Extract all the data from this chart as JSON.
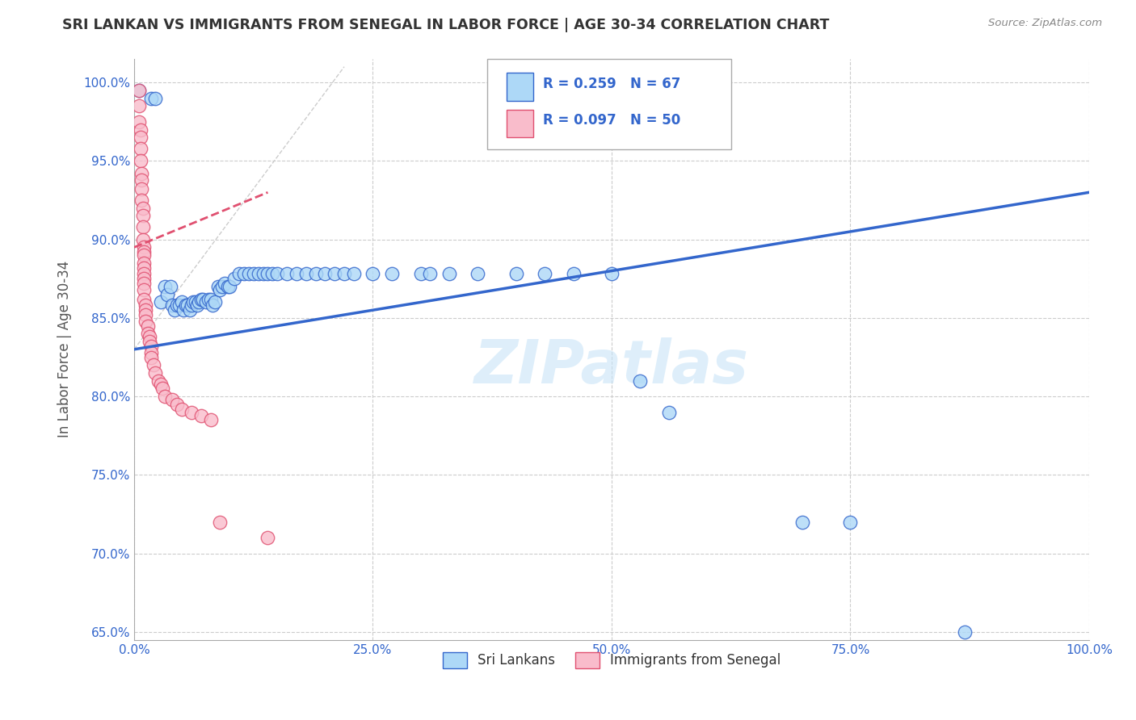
{
  "title": "SRI LANKAN VS IMMIGRANTS FROM SENEGAL IN LABOR FORCE | AGE 30-34 CORRELATION CHART",
  "source_text": "Source: ZipAtlas.com",
  "ylabel": "In Labor Force | Age 30-34",
  "watermark": "ZIPatlas",
  "xlim": [
    0.0,
    1.0
  ],
  "ylim": [
    0.645,
    1.015
  ],
  "xticks": [
    0.0,
    0.25,
    0.5,
    0.75,
    1.0
  ],
  "xticklabels": [
    "0.0%",
    "25.0%",
    "50.0%",
    "75.0%",
    "100.0%"
  ],
  "yticks": [
    0.65,
    0.7,
    0.75,
    0.8,
    0.85,
    0.9,
    0.95,
    1.0
  ],
  "yticklabels": [
    "65.0%",
    "70.0%",
    "75.0%",
    "80.0%",
    "85.0%",
    "90.0%",
    "95.0%",
    "100.0%"
  ],
  "legend_label1": "Sri Lankans",
  "legend_label2": "Immigrants from Senegal",
  "sri_lankan_color": "#ADD8F7",
  "senegal_color": "#F9BCCB",
  "trend_blue": "#3366CC",
  "trend_pink": "#E05070",
  "background_color": "#FFFFFF",
  "grid_color": "#CCCCCC",
  "title_color": "#333333",
  "axis_label_color": "#555555",
  "sri_lankans_x": [
    0.005,
    0.018,
    0.022,
    0.028,
    0.032,
    0.035,
    0.038,
    0.04,
    0.042,
    0.045,
    0.047,
    0.05,
    0.052,
    0.054,
    0.056,
    0.058,
    0.06,
    0.062,
    0.064,
    0.066,
    0.068,
    0.07,
    0.072,
    0.075,
    0.078,
    0.08,
    0.082,
    0.085,
    0.088,
    0.09,
    0.092,
    0.095,
    0.098,
    0.1,
    0.105,
    0.11,
    0.115,
    0.12,
    0.125,
    0.13,
    0.135,
    0.14,
    0.145,
    0.15,
    0.16,
    0.17,
    0.18,
    0.19,
    0.2,
    0.21,
    0.22,
    0.23,
    0.25,
    0.27,
    0.3,
    0.31,
    0.33,
    0.36,
    0.4,
    0.43,
    0.46,
    0.5,
    0.53,
    0.56,
    0.7,
    0.75,
    0.87
  ],
  "sri_lankans_y": [
    0.995,
    0.99,
    0.99,
    0.86,
    0.87,
    0.865,
    0.87,
    0.858,
    0.855,
    0.858,
    0.858,
    0.86,
    0.855,
    0.858,
    0.858,
    0.855,
    0.858,
    0.86,
    0.86,
    0.858,
    0.86,
    0.862,
    0.862,
    0.86,
    0.862,
    0.862,
    0.858,
    0.86,
    0.87,
    0.868,
    0.87,
    0.872,
    0.87,
    0.87,
    0.875,
    0.878,
    0.878,
    0.878,
    0.878,
    0.878,
    0.878,
    0.878,
    0.878,
    0.878,
    0.878,
    0.878,
    0.878,
    0.878,
    0.878,
    0.878,
    0.878,
    0.878,
    0.878,
    0.878,
    0.878,
    0.878,
    0.878,
    0.878,
    0.878,
    0.878,
    0.878,
    0.878,
    0.81,
    0.79,
    0.72,
    0.72,
    0.65
  ],
  "senegal_x": [
    0.005,
    0.005,
    0.005,
    0.007,
    0.007,
    0.007,
    0.007,
    0.008,
    0.008,
    0.008,
    0.008,
    0.009,
    0.009,
    0.009,
    0.009,
    0.01,
    0.01,
    0.01,
    0.01,
    0.01,
    0.01,
    0.01,
    0.01,
    0.01,
    0.01,
    0.012,
    0.012,
    0.012,
    0.012,
    0.014,
    0.014,
    0.016,
    0.016,
    0.018,
    0.018,
    0.018,
    0.02,
    0.022,
    0.025,
    0.028,
    0.03,
    0.032,
    0.04,
    0.045,
    0.05,
    0.06,
    0.07,
    0.08,
    0.09,
    0.14
  ],
  "senegal_y": [
    0.995,
    0.985,
    0.975,
    0.97,
    0.965,
    0.958,
    0.95,
    0.942,
    0.938,
    0.932,
    0.925,
    0.92,
    0.915,
    0.908,
    0.9,
    0.895,
    0.892,
    0.89,
    0.885,
    0.882,
    0.878,
    0.875,
    0.872,
    0.868,
    0.862,
    0.858,
    0.855,
    0.852,
    0.848,
    0.845,
    0.84,
    0.838,
    0.835,
    0.832,
    0.828,
    0.825,
    0.82,
    0.815,
    0.81,
    0.808,
    0.805,
    0.8,
    0.798,
    0.795,
    0.792,
    0.79,
    0.788,
    0.785,
    0.72,
    0.71
  ],
  "sri_trend_x0": 0.0,
  "sri_trend_y0": 0.83,
  "sri_trend_x1": 1.0,
  "sri_trend_y1": 0.93,
  "sen_trend_x0": 0.0,
  "sen_trend_y0": 0.895,
  "sen_trend_x1": 0.14,
  "sen_trend_y1": 0.93
}
